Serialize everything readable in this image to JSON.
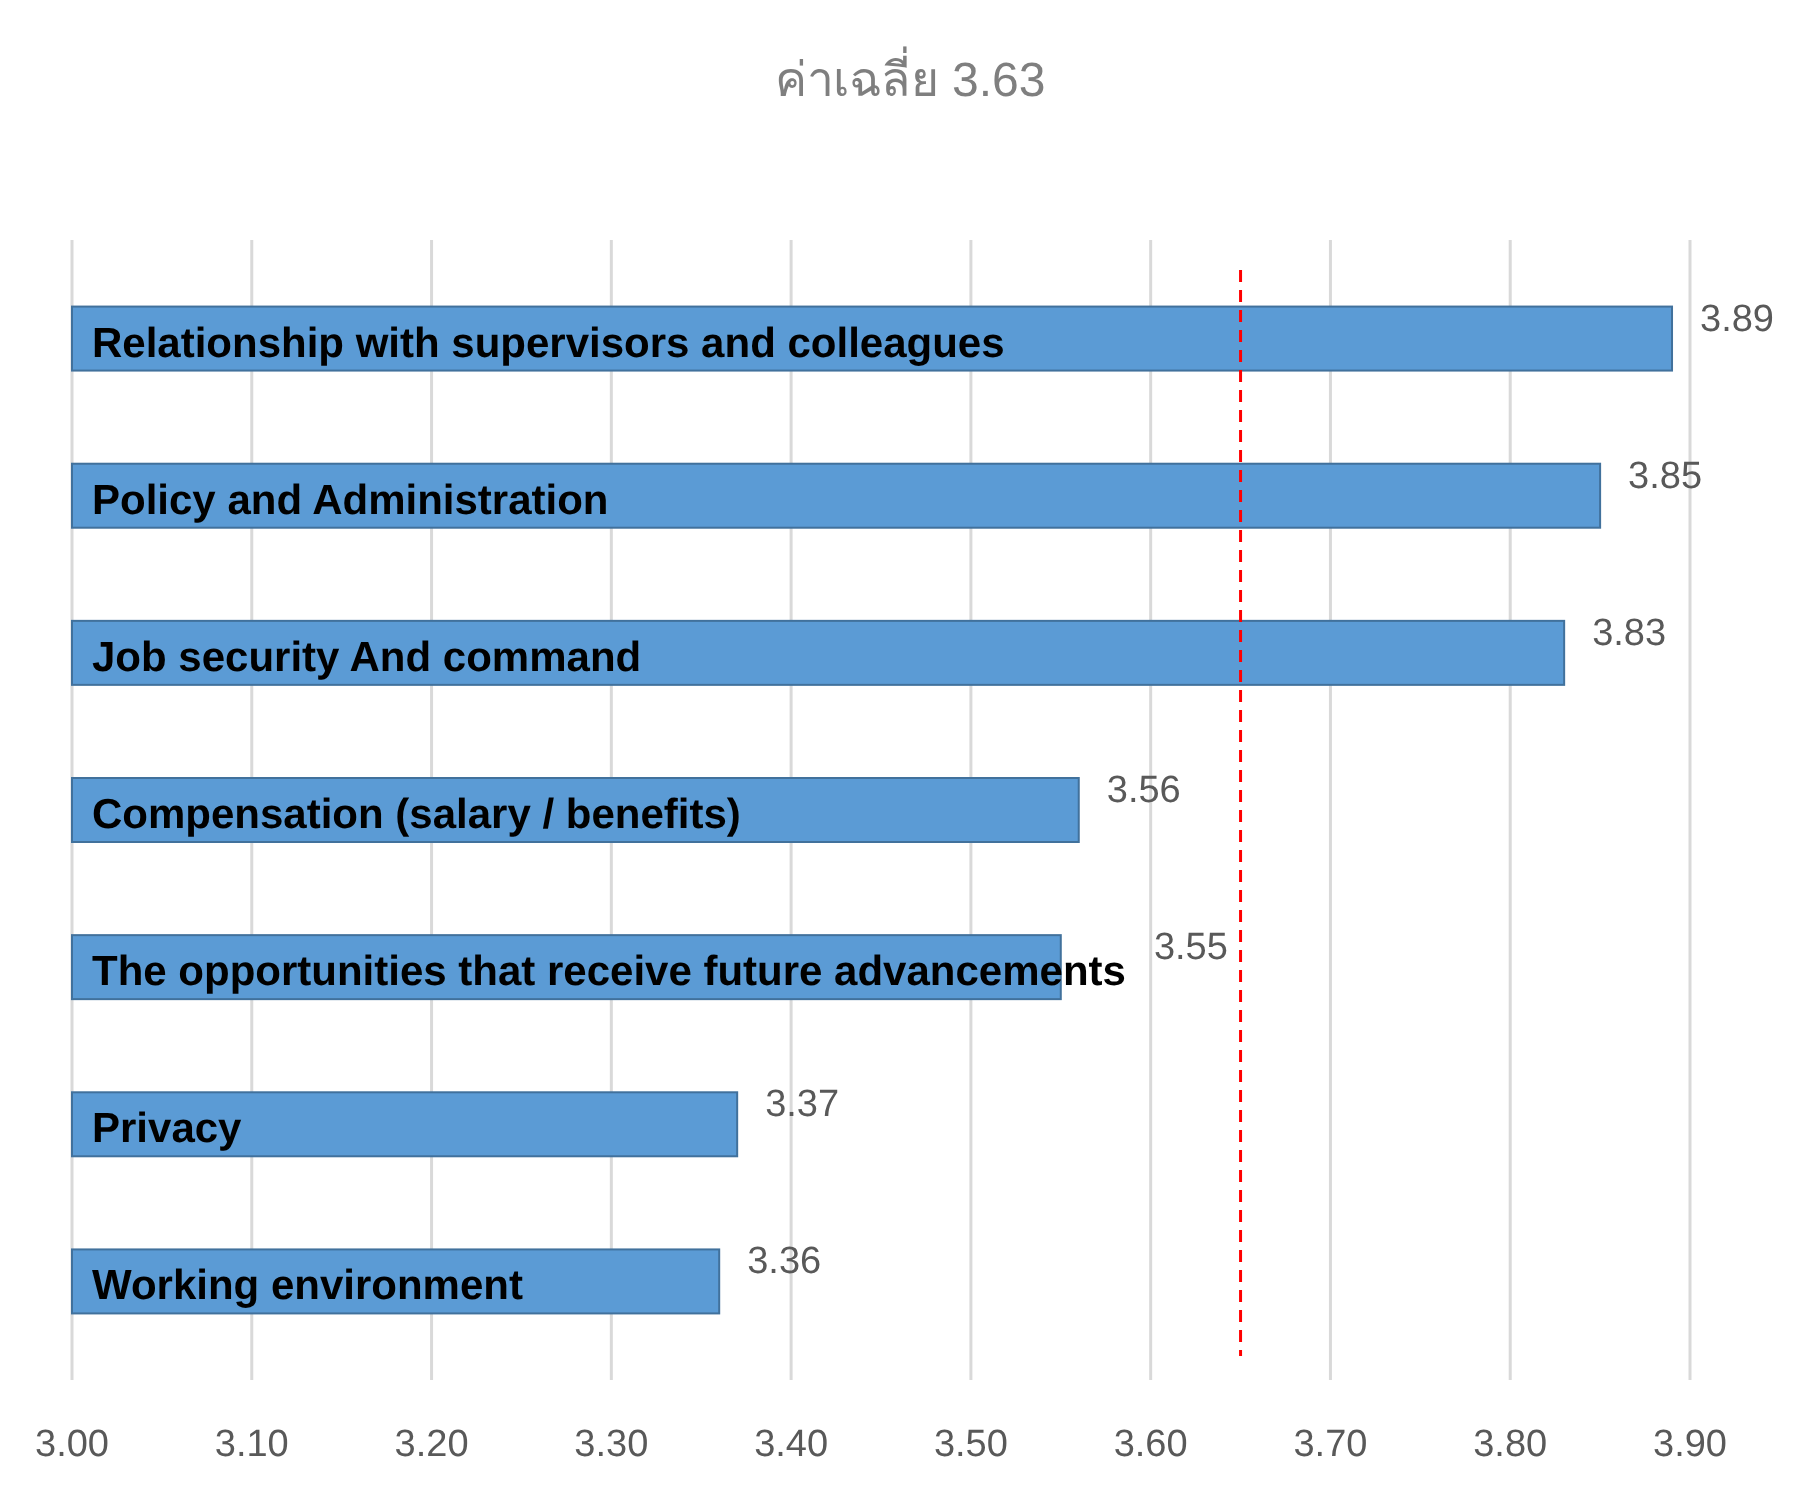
{
  "chart_data": {
    "type": "bar",
    "orientation": "horizontal",
    "title": "ค่าเฉลี่ย 3.63",
    "categories": [
      "Relationship with supervisors and colleagues",
      "Policy and Administration",
      "Job security And command",
      "Compensation (salary / benefits)",
      "The opportunities that receive future advancements",
      "Privacy",
      "Working environment"
    ],
    "values": [
      3.89,
      3.85,
      3.83,
      3.56,
      3.55,
      3.37,
      3.36
    ],
    "color": "#5b9bd5",
    "data_labels": true,
    "grid": "x",
    "xlim": [
      3.0,
      3.9
    ],
    "xticks": [
      {
        "value": 3.0,
        "label": "3.00"
      },
      {
        "value": 3.1,
        "label": "3.10"
      },
      {
        "value": 3.2,
        "label": "3.20"
      },
      {
        "value": 3.3,
        "label": "3.30"
      },
      {
        "value": 3.4,
        "label": "3.40"
      },
      {
        "value": 3.5,
        "label": "3.50"
      },
      {
        "value": 3.6,
        "label": "3.60"
      },
      {
        "value": 3.7,
        "label": "3.70"
      },
      {
        "value": 3.8,
        "label": "3.80"
      },
      {
        "value": 3.9,
        "label": "3.90"
      }
    ],
    "ref_lines": [
      {
        "axis": "x",
        "value": 3.65,
        "color": "#ff0000",
        "line_style": "dashed"
      }
    ]
  }
}
